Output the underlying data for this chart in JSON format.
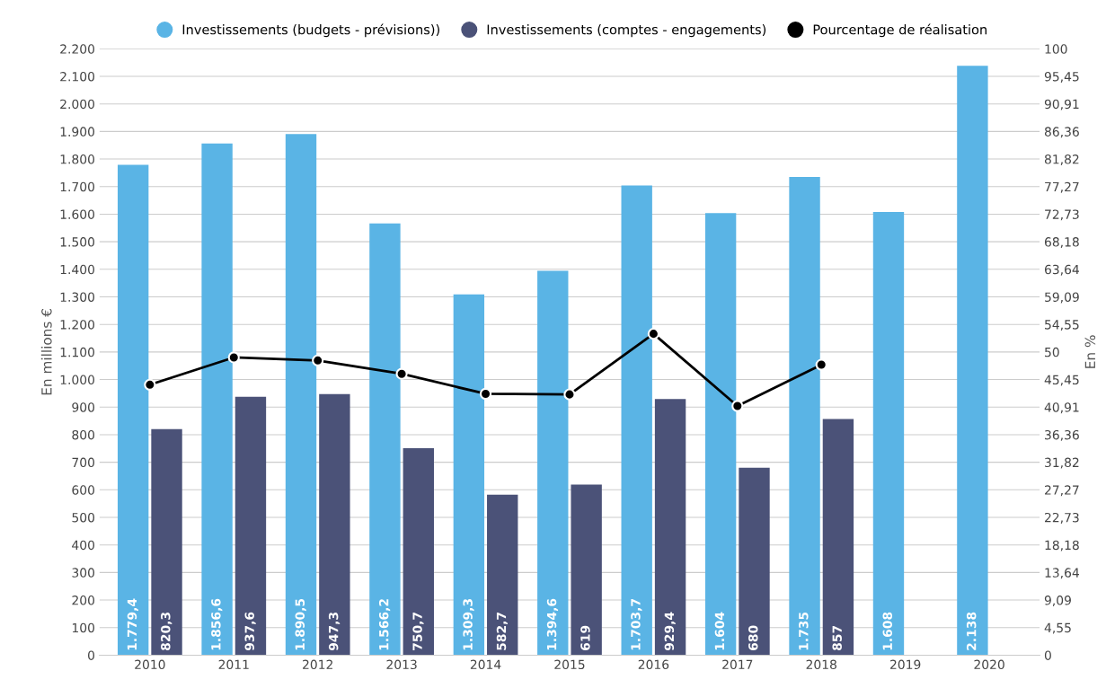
{
  "chart_data": {
    "type": "bar",
    "categories": [
      "2010",
      "2011",
      "2012",
      "2013",
      "2014",
      "2015",
      "2016",
      "2017",
      "2018",
      "2019",
      "2020"
    ],
    "series": [
      {
        "name": "Investissements (budgets - prévisions))",
        "color": "#5ab4e5",
        "values": [
          1779.4,
          1856.6,
          1890.5,
          1566.2,
          1309.3,
          1394.6,
          1703.7,
          1604,
          1735,
          1608,
          2138
        ],
        "value_labels": [
          "1.779,4",
          "1.856,6",
          "1.890,5",
          "1.566,2",
          "1.309,3",
          "1.394,6",
          "1.703,7",
          "1.604",
          "1.735",
          "1.608",
          "2.138"
        ]
      },
      {
        "name": "Investissements (comptes - engagements)",
        "color": "#4b5278",
        "values": [
          820.3,
          937.6,
          947.3,
          750.7,
          582.7,
          619,
          929.4,
          680,
          857,
          null,
          null
        ],
        "value_labels": [
          "820,3",
          "937,6",
          "947,3",
          "750,7",
          "582,7",
          "619",
          "929,4",
          "680",
          "857",
          null,
          null
        ]
      },
      {
        "name": "Pourcentage de réalisation",
        "color": "#000000",
        "type": "line",
        "axis": "y2",
        "marker": "circle",
        "values": [
          44.6,
          49.1,
          48.6,
          46.4,
          43.1,
          43.0,
          53.0,
          41.1,
          47.9,
          null,
          null
        ]
      }
    ],
    "ylabel": "En millions €",
    "y2label": "En %",
    "ylim": [
      0,
      2200
    ],
    "yticks": [
      {
        "value": 0,
        "label": "0"
      },
      {
        "value": 100,
        "label": "100"
      },
      {
        "value": 200,
        "label": "200"
      },
      {
        "value": 300,
        "label": "300"
      },
      {
        "value": 400,
        "label": "400"
      },
      {
        "value": 500,
        "label": "500"
      },
      {
        "value": 600,
        "label": "600"
      },
      {
        "value": 700,
        "label": "700"
      },
      {
        "value": 800,
        "label": "800"
      },
      {
        "value": 900,
        "label": "900"
      },
      {
        "value": 1000,
        "label": "1.000"
      },
      {
        "value": 1100,
        "label": "1.100"
      },
      {
        "value": 1200,
        "label": "1.200"
      },
      {
        "value": 1300,
        "label": "1.300"
      },
      {
        "value": 1400,
        "label": "1.400"
      },
      {
        "value": 1500,
        "label": "1.500"
      },
      {
        "value": 1600,
        "label": "1.600"
      },
      {
        "value": 1700,
        "label": "1.700"
      },
      {
        "value": 1800,
        "label": "1.800"
      },
      {
        "value": 1900,
        "label": "1.900"
      },
      {
        "value": 2000,
        "label": "2.000"
      },
      {
        "value": 2100,
        "label": "2.100"
      },
      {
        "value": 2200,
        "label": "2.200"
      }
    ],
    "y2lim": [
      0,
      100
    ],
    "y2ticks": [
      {
        "value": 0,
        "label": "0"
      },
      {
        "value": 4.55,
        "label": "4,55"
      },
      {
        "value": 9.09,
        "label": "9,09"
      },
      {
        "value": 13.64,
        "label": "13,64"
      },
      {
        "value": 18.18,
        "label": "18,18"
      },
      {
        "value": 22.73,
        "label": "22,73"
      },
      {
        "value": 27.27,
        "label": "27,27"
      },
      {
        "value": 31.82,
        "label": "31,82"
      },
      {
        "value": 36.36,
        "label": "36,36"
      },
      {
        "value": 40.91,
        "label": "40,91"
      },
      {
        "value": 45.45,
        "label": "45,45"
      },
      {
        "value": 50,
        "label": "50"
      },
      {
        "value": 54.55,
        "label": "54,55"
      },
      {
        "value": 59.09,
        "label": "59,09"
      },
      {
        "value": 63.64,
        "label": "63,64"
      },
      {
        "value": 68.18,
        "label": "68,18"
      },
      {
        "value": 72.73,
        "label": "72,73"
      },
      {
        "value": 77.27,
        "label": "77,27"
      },
      {
        "value": 81.82,
        "label": "81,82"
      },
      {
        "value": 86.36,
        "label": "86,36"
      },
      {
        "value": 90.91,
        "label": "90,91"
      },
      {
        "value": 95.45,
        "label": "95,45"
      },
      {
        "value": 100,
        "label": "100"
      }
    ],
    "grid": "y",
    "legend": "top",
    "line_style": "solid"
  }
}
